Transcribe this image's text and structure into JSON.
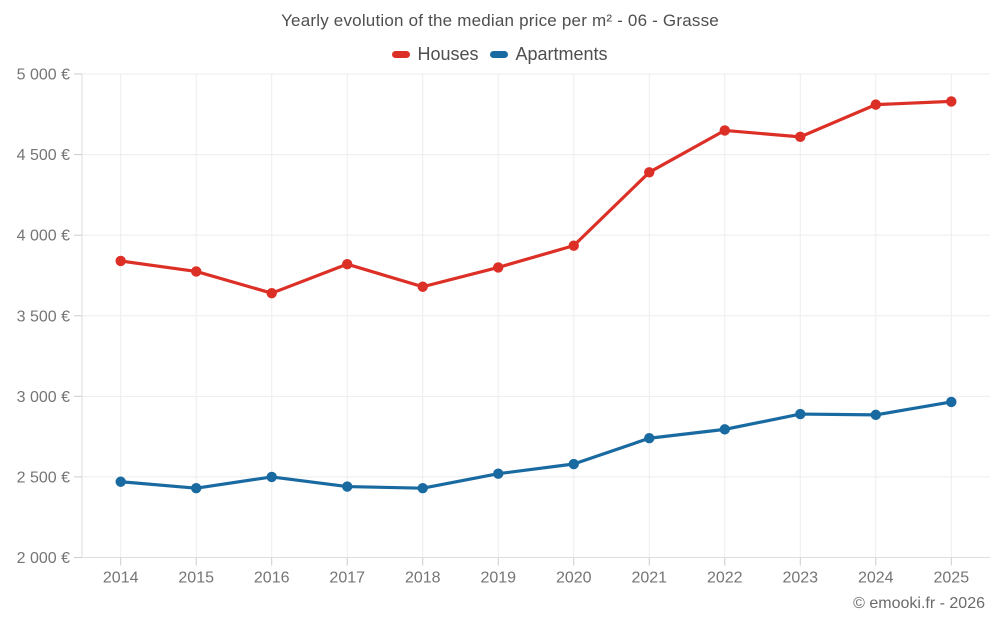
{
  "chart_data": {
    "type": "line",
    "title": "Yearly evolution of the median price per m² - 06 - Grasse",
    "categories": [
      "2014",
      "2015",
      "2016",
      "2017",
      "2018",
      "2019",
      "2020",
      "2021",
      "2022",
      "2023",
      "2024",
      "2025"
    ],
    "series": [
      {
        "name": "Houses",
        "color": "#dc3027",
        "values": [
          3840,
          3775,
          3640,
          3820,
          3680,
          3800,
          3935,
          4390,
          4650,
          4610,
          4810,
          4830
        ]
      },
      {
        "name": "Apartments",
        "color": "#1a6aa2",
        "values": [
          2470,
          2430,
          2500,
          2440,
          2430,
          2520,
          2580,
          2740,
          2795,
          2890,
          2885,
          2965
        ]
      }
    ],
    "xlabel": "",
    "ylabel": "",
    "ylim": [
      2000,
      5000
    ],
    "ytick_step": 500,
    "ytick_suffix": " €",
    "ytick_labels": [
      "2 000 €",
      "2 500 €",
      "3 000 €",
      "3 500 €",
      "4 000 €",
      "4 500 €",
      "5 000 €"
    ],
    "grid": true,
    "legend_position": "top"
  },
  "theme": {
    "background": "#ffffff",
    "grid_color": "#ededed",
    "axis_color": "#dedede",
    "tick_color": "#cccccc",
    "axis_label_color": "#757575",
    "title_color": "#4f4f4f",
    "credit_color": "#6b6b6b"
  },
  "footer": {
    "credit": "© emooki.fr - 2026"
  }
}
